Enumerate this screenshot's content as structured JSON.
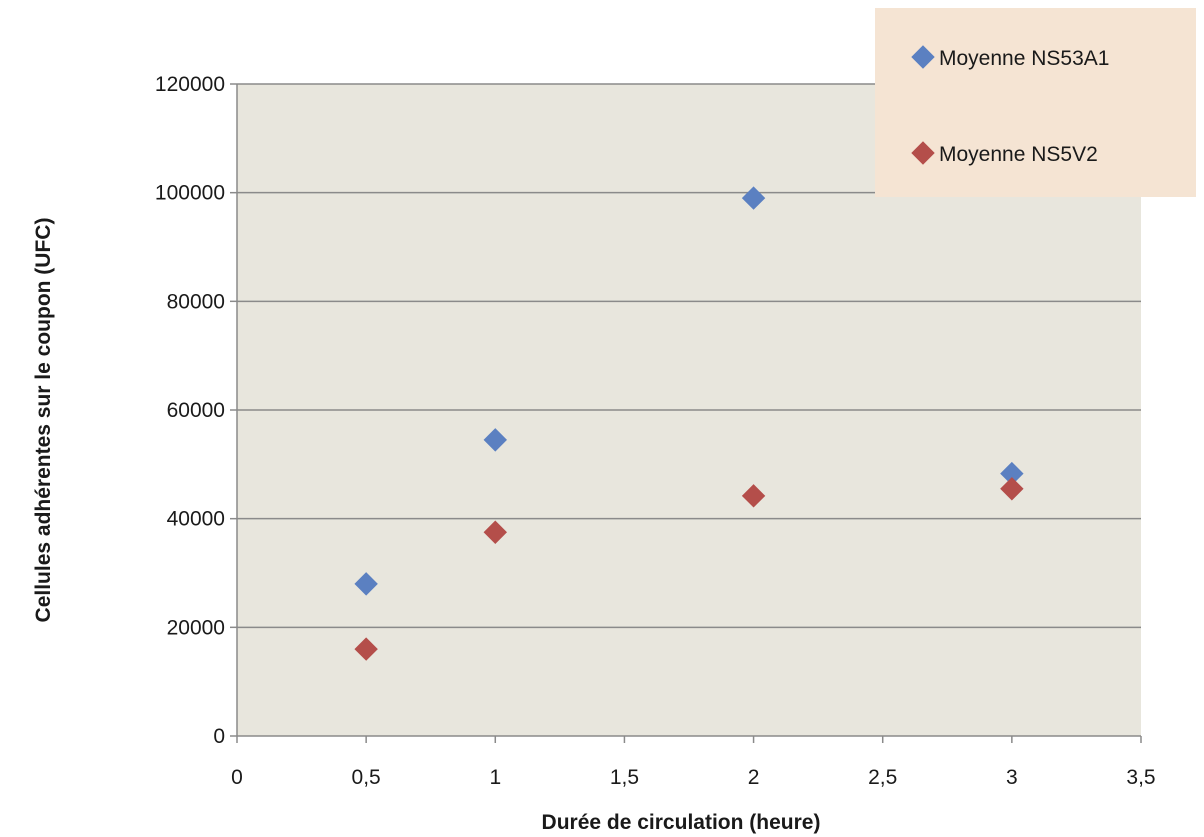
{
  "chart_data": {
    "type": "scatter",
    "title": "",
    "xlabel": "Durée de circulation (heure)",
    "ylabel": "Cellules adhérentes sur le coupon (UFC)",
    "xlim": [
      0,
      3.5
    ],
    "ylim": [
      0,
      120000
    ],
    "x_ticks": [
      0,
      0.5,
      1,
      1.5,
      2,
      2.5,
      3,
      3.5
    ],
    "x_tick_labels": [
      "0",
      "0,5",
      "1",
      "1,5",
      "2",
      "2,5",
      "3",
      "3,5"
    ],
    "y_ticks": [
      0,
      20000,
      40000,
      60000,
      80000,
      100000,
      120000
    ],
    "y_tick_labels": [
      "0",
      "20000",
      "40000",
      "60000",
      "80000",
      "100000",
      "120000"
    ],
    "grid": "horizontal",
    "legend_position": "top-right",
    "plot_background": "#e8e6dd",
    "legend_background": "#f5e4d3",
    "series": [
      {
        "name": "Moyenne NS53A1",
        "color": "#5b80c1",
        "marker": "diamond",
        "points": [
          {
            "x": 0.5,
            "y": 28000
          },
          {
            "x": 1,
            "y": 54500
          },
          {
            "x": 2,
            "y": 99000
          },
          {
            "x": 3,
            "y": 48300
          }
        ]
      },
      {
        "name": "Moyenne NS5V2",
        "color": "#b44e4a",
        "marker": "diamond",
        "points": [
          {
            "x": 0.5,
            "y": 16000
          },
          {
            "x": 1,
            "y": 37500
          },
          {
            "x": 2,
            "y": 44200
          },
          {
            "x": 3,
            "y": 45500
          }
        ]
      }
    ]
  }
}
